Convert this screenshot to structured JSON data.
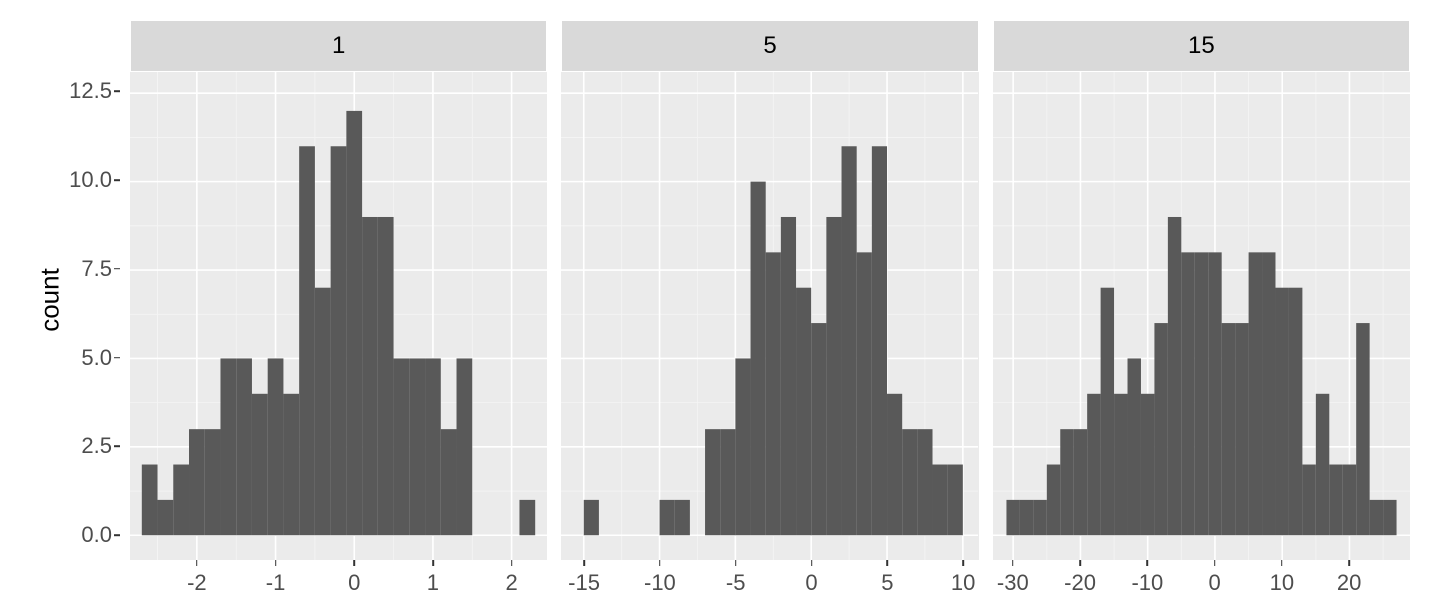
{
  "ylabel": "count",
  "y_axis": {
    "lim": [
      -0.7,
      13.1
    ],
    "major_ticks": [
      0.0,
      2.5,
      5.0,
      7.5,
      10.0,
      12.5
    ],
    "tick_labels": [
      "0.0",
      "2.5",
      "5.0",
      "7.5",
      "10.0",
      "12.5"
    ],
    "minor_ticks": [
      1.25,
      3.75,
      6.25,
      8.75,
      11.25
    ]
  },
  "colors": {
    "panel_bg": "#ebebeb",
    "strip_bg": "#d9d9d9",
    "grid_major": "#ffffff",
    "grid_minor": "#f5f5f5",
    "bar_fill": "#595959",
    "text": "#4d4d4d"
  },
  "fontsize": {
    "axis_label": 26,
    "tick": 22,
    "strip": 24
  },
  "panels": [
    {
      "label": "1",
      "xlim": [
        -2.85,
        2.45
      ],
      "binwidth": 0.2,
      "x_major_ticks": [
        -2,
        -1,
        0,
        1,
        2
      ],
      "x_tick_labels": [
        "-2",
        "-1",
        "0",
        "1",
        "2"
      ],
      "x_minor_ticks": [
        -2.5,
        -1.5,
        -0.5,
        0.5,
        1.5
      ],
      "bars": [
        {
          "x0": -2.7,
          "count": 2
        },
        {
          "x0": -2.5,
          "count": 1
        },
        {
          "x0": -2.3,
          "count": 2
        },
        {
          "x0": -2.1,
          "count": 3
        },
        {
          "x0": -1.9,
          "count": 3
        },
        {
          "x0": -1.7,
          "count": 5
        },
        {
          "x0": -1.5,
          "count": 5
        },
        {
          "x0": -1.3,
          "count": 4
        },
        {
          "x0": -1.1,
          "count": 5
        },
        {
          "x0": -0.9,
          "count": 4
        },
        {
          "x0": -0.7,
          "count": 11
        },
        {
          "x0": -0.5,
          "count": 7
        },
        {
          "x0": -0.3,
          "count": 11
        },
        {
          "x0": -0.1,
          "count": 12
        },
        {
          "x0": 0.1,
          "count": 9
        },
        {
          "x0": 0.3,
          "count": 9
        },
        {
          "x0": 0.5,
          "count": 5
        },
        {
          "x0": 0.7,
          "count": 5
        },
        {
          "x0": 0.9,
          "count": 5
        },
        {
          "x0": 1.1,
          "count": 3
        },
        {
          "x0": 1.3,
          "count": 5
        },
        {
          "x0": 1.5,
          "count": 0
        },
        {
          "x0": 1.7,
          "count": 0
        },
        {
          "x0": 1.9,
          "count": 0
        },
        {
          "x0": 2.1,
          "count": 1
        }
      ]
    },
    {
      "label": "5",
      "xlim": [
        -16.5,
        11
      ],
      "binwidth": 1,
      "x_major_ticks": [
        -15,
        -10,
        -5,
        0,
        5,
        10
      ],
      "x_tick_labels": [
        "-15",
        "-10",
        "-5",
        "0",
        "5",
        "10"
      ],
      "x_minor_ticks": [
        -12.5,
        -7.5,
        -2.5,
        2.5,
        7.5
      ],
      "bars": [
        {
          "x0": -15,
          "count": 1
        },
        {
          "x0": -14,
          "count": 0
        },
        {
          "x0": -13,
          "count": 0
        },
        {
          "x0": -12,
          "count": 0
        },
        {
          "x0": -11,
          "count": 0
        },
        {
          "x0": -10,
          "count": 1
        },
        {
          "x0": -9,
          "count": 1
        },
        {
          "x0": -8,
          "count": 0
        },
        {
          "x0": -7,
          "count": 3
        },
        {
          "x0": -6,
          "count": 3
        },
        {
          "x0": -5,
          "count": 5
        },
        {
          "x0": -4,
          "count": 10
        },
        {
          "x0": -3,
          "count": 8
        },
        {
          "x0": -2,
          "count": 9
        },
        {
          "x0": -1,
          "count": 7
        },
        {
          "x0": 0,
          "count": 6
        },
        {
          "x0": 1,
          "count": 9
        },
        {
          "x0": 2,
          "count": 11
        },
        {
          "x0": 3,
          "count": 8
        },
        {
          "x0": 4,
          "count": 11
        },
        {
          "x0": 5,
          "count": 4
        },
        {
          "x0": 6,
          "count": 3
        },
        {
          "x0": 7,
          "count": 3
        },
        {
          "x0": 8,
          "count": 2
        },
        {
          "x0": 9,
          "count": 2
        }
      ]
    },
    {
      "label": "15",
      "xlim": [
        -33,
        29
      ],
      "binwidth": 2,
      "x_major_ticks": [
        -30,
        -20,
        -10,
        0,
        10,
        20
      ],
      "x_tick_labels": [
        "-30",
        "-20",
        "-10",
        "0",
        "10",
        "20"
      ],
      "x_minor_ticks": [
        -25,
        -15,
        -5,
        5,
        15,
        25
      ],
      "bars": [
        {
          "x0": -31,
          "count": 1
        },
        {
          "x0": -29,
          "count": 1
        },
        {
          "x0": -27,
          "count": 1
        },
        {
          "x0": -25,
          "count": 2
        },
        {
          "x0": -23,
          "count": 3
        },
        {
          "x0": -21,
          "count": 3
        },
        {
          "x0": -19,
          "count": 4
        },
        {
          "x0": -17,
          "count": 7
        },
        {
          "x0": -15,
          "count": 4
        },
        {
          "x0": -13,
          "count": 5
        },
        {
          "x0": -11,
          "count": 4
        },
        {
          "x0": -9,
          "count": 6
        },
        {
          "x0": -7,
          "count": 9
        },
        {
          "x0": -5,
          "count": 8
        },
        {
          "x0": -3,
          "count": 8
        },
        {
          "x0": -1,
          "count": 8
        },
        {
          "x0": 1,
          "count": 6
        },
        {
          "x0": 3,
          "count": 6
        },
        {
          "x0": 5,
          "count": 8
        },
        {
          "x0": 7,
          "count": 8
        },
        {
          "x0": 9,
          "count": 7
        },
        {
          "x0": 11,
          "count": 7
        },
        {
          "x0": 13,
          "count": 2
        },
        {
          "x0": 15,
          "count": 4
        },
        {
          "x0": 17,
          "count": 2
        },
        {
          "x0": 19,
          "count": 2
        },
        {
          "x0": 21,
          "count": 6
        },
        {
          "x0": 23,
          "count": 1
        },
        {
          "x0": 25,
          "count": 1
        }
      ]
    }
  ]
}
